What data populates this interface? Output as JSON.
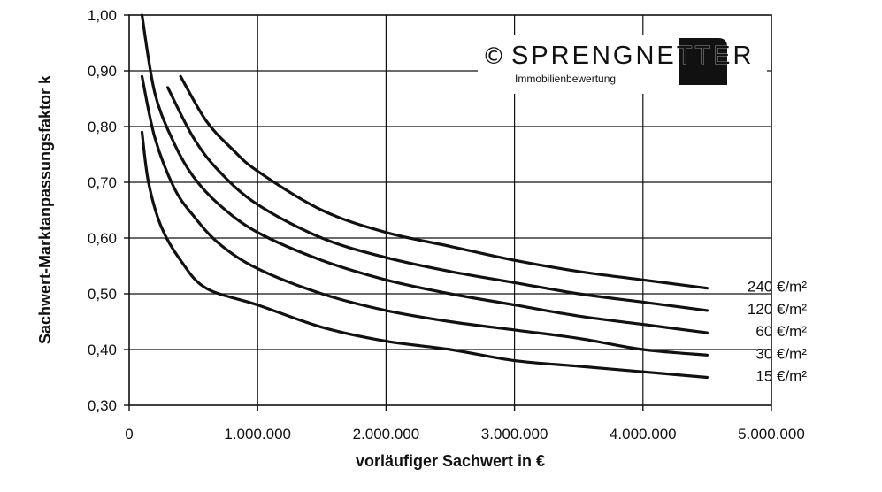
{
  "chart_data": {
    "type": "line",
    "xlabel": "vorläufiger Sachwert in €",
    "ylabel": "Sachwert-Marktanpassungsfaktor k",
    "xlim": [
      0,
      5000000
    ],
    "ylim": [
      0.3,
      1.0
    ],
    "x_ticks": [
      0,
      1000000,
      2000000,
      3000000,
      4000000,
      5000000
    ],
    "x_tick_labels": [
      "0",
      "1.000.000",
      "2.000.000",
      "3.000.000",
      "4.000.000",
      "5.000.000"
    ],
    "y_ticks": [
      0.3,
      0.4,
      0.5,
      0.6,
      0.7,
      0.8,
      0.9,
      1.0
    ],
    "y_tick_labels": [
      "0,30",
      "0,40",
      "0,50",
      "0,60",
      "0,70",
      "0,80",
      "0,90",
      "1,00"
    ],
    "grid": true,
    "series": [
      {
        "name": "240 €/m²",
        "x": [
          400000,
          600000,
          800000,
          1000000,
          1500000,
          2000000,
          2500000,
          3000000,
          3500000,
          4000000,
          4500000
        ],
        "y": [
          0.89,
          0.81,
          0.76,
          0.72,
          0.65,
          0.61,
          0.585,
          0.56,
          0.54,
          0.525,
          0.51
        ]
      },
      {
        "name": "120 €/m²",
        "x": [
          300000,
          500000,
          700000,
          1000000,
          1500000,
          2000000,
          2500000,
          3000000,
          3500000,
          4000000,
          4500000
        ],
        "y": [
          0.87,
          0.78,
          0.72,
          0.66,
          0.6,
          0.565,
          0.54,
          0.52,
          0.5,
          0.485,
          0.47
        ]
      },
      {
        "name": "60 €/m²",
        "x": [
          100000,
          200000,
          350000,
          500000,
          700000,
          1000000,
          1500000,
          2000000,
          2500000,
          3000000,
          3500000,
          4000000,
          4500000
        ],
        "y": [
          1.0,
          0.86,
          0.77,
          0.71,
          0.66,
          0.61,
          0.56,
          0.525,
          0.5,
          0.48,
          0.46,
          0.445,
          0.43
        ]
      },
      {
        "name": "30 €/m²",
        "x": [
          100000,
          200000,
          350000,
          500000,
          700000,
          1000000,
          1500000,
          2000000,
          2500000,
          3000000,
          3500000,
          4000000,
          4500000
        ],
        "y": [
          0.89,
          0.78,
          0.69,
          0.64,
          0.59,
          0.545,
          0.5,
          0.47,
          0.45,
          0.435,
          0.42,
          0.4,
          0.39
        ]
      },
      {
        "name": "15 €/m²",
        "x": [
          100000,
          150000,
          250000,
          400000,
          600000,
          1000000,
          1500000,
          2000000,
          2500000,
          3000000,
          3500000,
          4000000,
          4500000
        ],
        "y": [
          0.79,
          0.7,
          0.62,
          0.56,
          0.51,
          0.48,
          0.44,
          0.415,
          0.4,
          0.38,
          0.37,
          0.36,
          0.35
        ]
      }
    ]
  },
  "logo": {
    "copyright_symbol": "©",
    "brand": "SPRENGNETTER",
    "subtitle": "Immobilienbewertung"
  }
}
